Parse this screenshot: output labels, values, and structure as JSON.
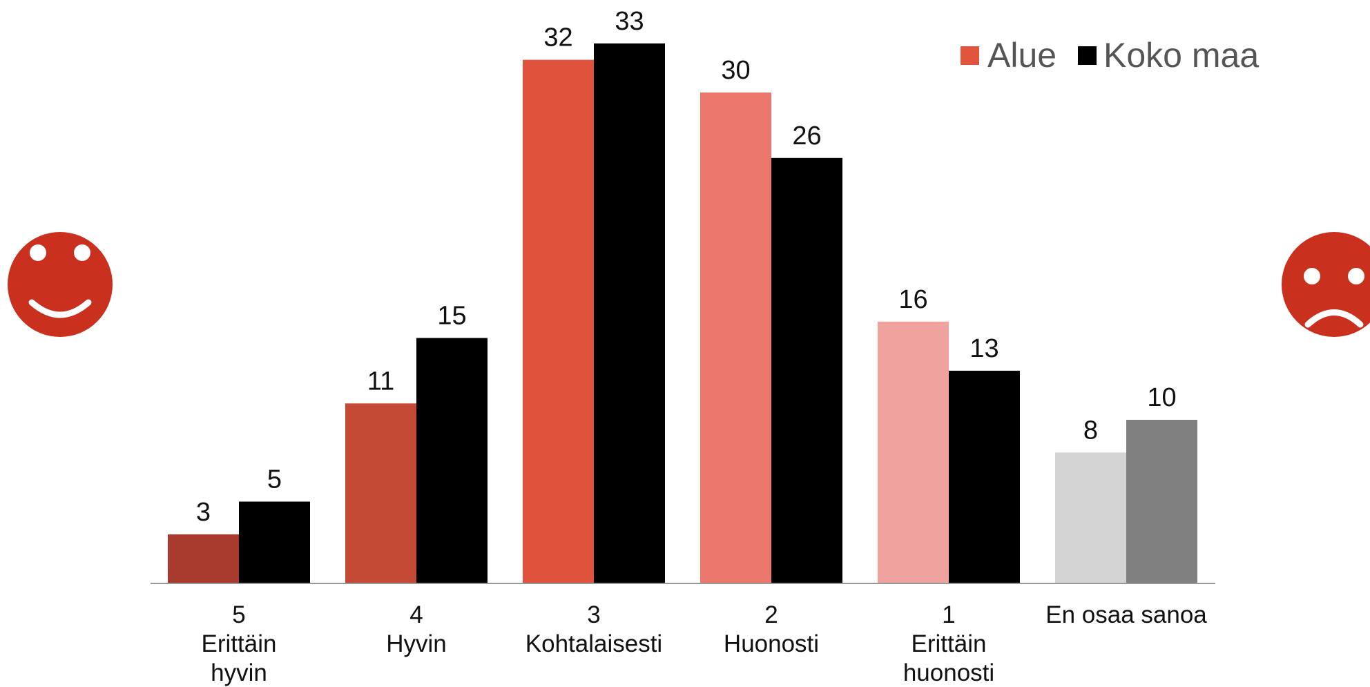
{
  "chart_data": {
    "type": "bar",
    "categories": [
      [
        "5",
        "Erittäin",
        "hyvin"
      ],
      [
        "4",
        "Hyvin"
      ],
      [
        "3",
        "Kohtalaisesti"
      ],
      [
        "2",
        "Huonosti"
      ],
      [
        "1",
        "Erittäin",
        "huonosti"
      ],
      [
        "En osaa sanoa"
      ]
    ],
    "series": [
      {
        "name": "Alue",
        "values": [
          3,
          11,
          32,
          30,
          16,
          8
        ],
        "colors": [
          "#a83a2e",
          "#c44a36",
          "#df533d",
          "#ec776c",
          "#f0a29e",
          "#d4d4d4"
        ]
      },
      {
        "name": "Koko maa",
        "values": [
          5,
          15,
          33,
          26,
          13,
          10
        ],
        "colors": [
          "#000000",
          "#000000",
          "#000000",
          "#000000",
          "#000000",
          "#808080"
        ]
      }
    ],
    "legend": {
      "position": "top-right",
      "items": [
        {
          "label": "Alue",
          "color": "#e0533d"
        },
        {
          "label": "Koko maa",
          "color": "#000000"
        }
      ]
    },
    "ylim": [
      0,
      35
    ],
    "grid": false,
    "axis_color": "#999999",
    "icons": {
      "left": "smiley-face-icon",
      "right": "sad-face-icon",
      "color": "#c9301d"
    }
  }
}
